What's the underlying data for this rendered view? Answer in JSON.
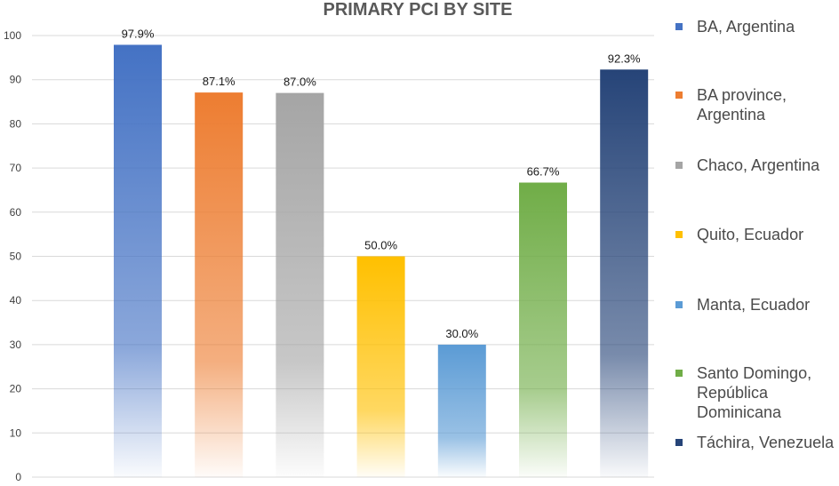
{
  "chart_data": {
    "type": "bar",
    "title": "PRIMARY PCI BY SITE",
    "xlabel": "",
    "ylabel": "",
    "ylim": [
      0,
      100
    ],
    "yticks": [
      0,
      10,
      20,
      30,
      40,
      50,
      60,
      70,
      80,
      90,
      100
    ],
    "grid": true,
    "legend_position": "right",
    "categories": [
      "BA, Argentina",
      "BA province, Argentina",
      "Chaco, Argentina",
      "Quito, Ecuador",
      "Manta, Ecuador",
      "Santo Domingo, República Dominicana",
      "Táchira, Venezuela"
    ],
    "values": [
      97.9,
      87.1,
      87.0,
      50.0,
      30.0,
      66.7,
      92.3
    ],
    "data_labels": [
      "97.9%",
      "87.1%",
      "87.0%",
      "50.0%",
      "30.0%",
      "66.7%",
      "92.3%"
    ],
    "legend": [
      {
        "lines": [
          "BA, Argentina"
        ],
        "color": "#4472C4"
      },
      {
        "lines": [
          "BA province,",
          "Argentina"
        ],
        "color": "#ED7D31"
      },
      {
        "lines": [
          "Chaco, Argentina"
        ],
        "color": "#A5A5A5"
      },
      {
        "lines": [
          "Quito, Ecuador"
        ],
        "color": "#FFC000"
      },
      {
        "lines": [
          "Manta, Ecuador"
        ],
        "color": "#5B9BD5"
      },
      {
        "lines": [
          "Santo Domingo,",
          "República",
          "Dominicana"
        ],
        "color": "#70AD47"
      },
      {
        "lines": [
          "Táchira, Venezuela"
        ],
        "color": "#264478"
      }
    ],
    "colors": [
      "#4472C4",
      "#ED7D31",
      "#A5A5A5",
      "#FFC000",
      "#5B9BD5",
      "#70AD47",
      "#264478"
    ]
  }
}
